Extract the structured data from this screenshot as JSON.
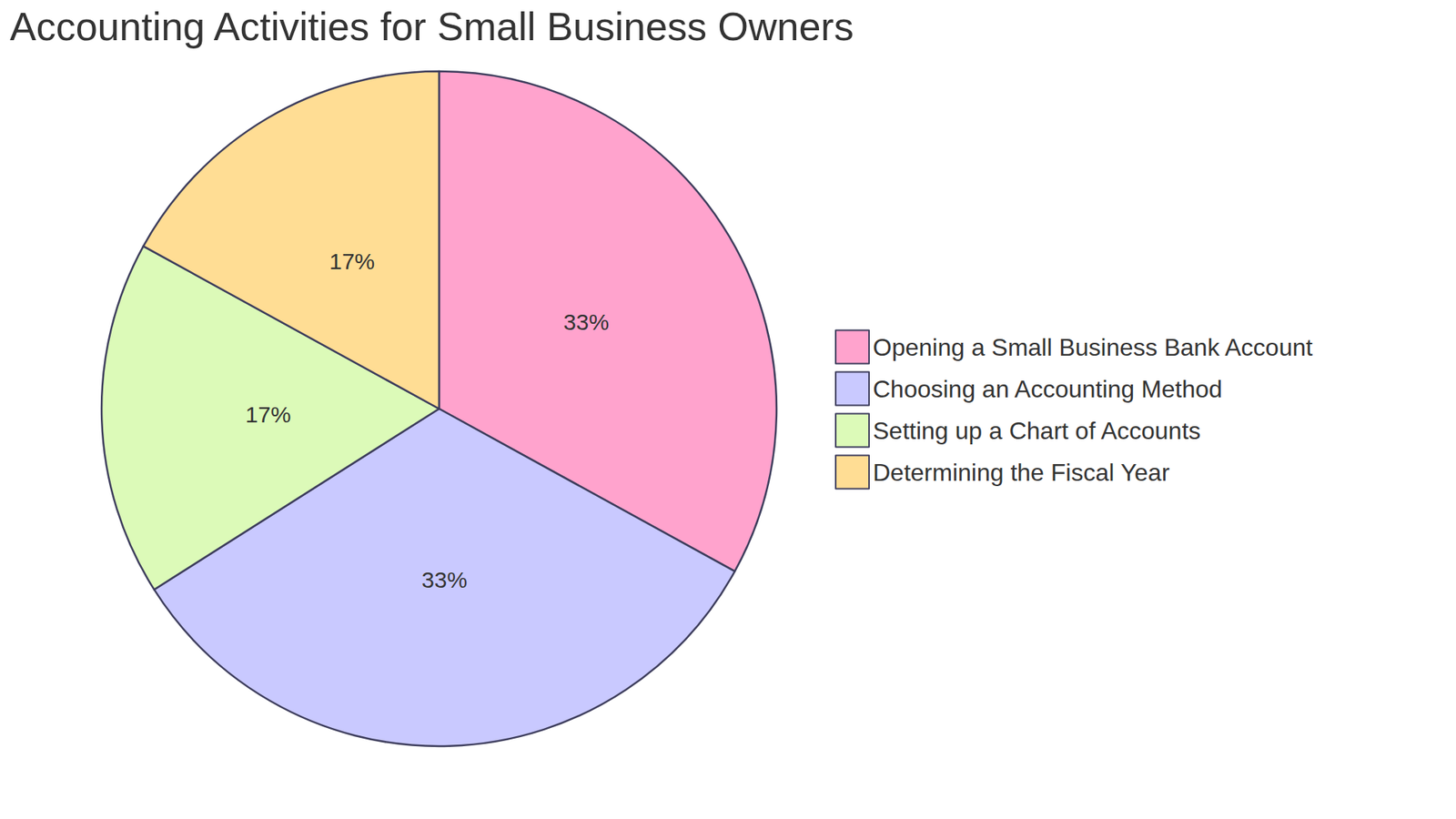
{
  "chart_data": {
    "type": "pie",
    "title": "Accounting Activities for Small Business Owners",
    "categories": [
      "Opening a Small Business Bank Account",
      "Choosing an Accounting Method",
      "Setting up a Chart of Accounts",
      "Determining the Fiscal Year"
    ],
    "values": [
      33,
      33,
      17,
      17
    ],
    "value_labels": [
      "33%",
      "33%",
      "17%",
      "17%"
    ],
    "colors": [
      "#ffa3cd",
      "#c9c9ff",
      "#dcfab8",
      "#ffdd94"
    ],
    "data_labels": true,
    "legend": "right"
  }
}
